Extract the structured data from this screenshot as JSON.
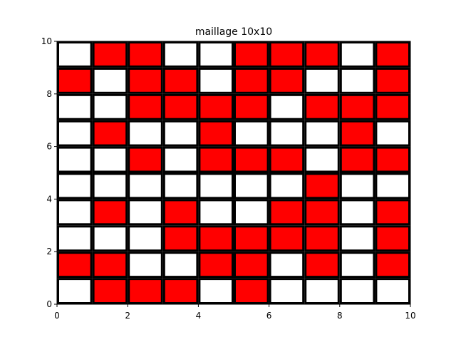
{
  "chart_data": {
    "type": "heatmap",
    "title": "maillage 10x10",
    "xlabel": "",
    "ylabel": "",
    "xlim": [
      0,
      10
    ],
    "ylim": [
      0,
      10
    ],
    "x_ticks": [
      "0",
      "2",
      "4",
      "6",
      "8",
      "10"
    ],
    "y_ticks": [
      "0",
      "2",
      "4",
      "6",
      "8",
      "10"
    ],
    "grid": false,
    "row_order": "top-to-bottom (row 0 spans y 9 to 10)",
    "cells": [
      [
        0,
        1,
        1,
        0,
        0,
        1,
        1,
        1,
        0,
        1
      ],
      [
        1,
        0,
        1,
        1,
        0,
        1,
        1,
        0,
        0,
        1
      ],
      [
        0,
        0,
        1,
        1,
        1,
        1,
        0,
        1,
        1,
        1
      ],
      [
        0,
        1,
        0,
        0,
        1,
        0,
        0,
        0,
        1,
        0
      ],
      [
        0,
        0,
        1,
        0,
        1,
        1,
        1,
        0,
        1,
        1
      ],
      [
        0,
        0,
        0,
        0,
        0,
        0,
        0,
        1,
        0,
        0
      ],
      [
        0,
        1,
        0,
        1,
        0,
        0,
        1,
        1,
        0,
        1
      ],
      [
        0,
        0,
        0,
        1,
        1,
        1,
        1,
        1,
        0,
        1
      ],
      [
        1,
        1,
        0,
        0,
        1,
        1,
        0,
        1,
        0,
        1
      ],
      [
        0,
        1,
        1,
        1,
        0,
        1,
        0,
        0,
        0,
        0
      ]
    ],
    "colors": {
      "1": "#ff0000",
      "0": "#ffffff",
      "edge": "#000000"
    }
  }
}
